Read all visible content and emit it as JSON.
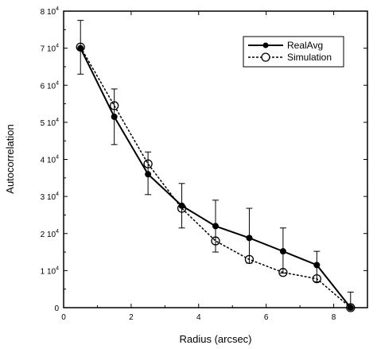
{
  "chart_data": {
    "type": "line",
    "xlabel": "Radius (arcsec)",
    "ylabel": "Autocorrelation",
    "xlim": [
      0,
      9
    ],
    "ylim": [
      0,
      80000
    ],
    "x_ticks": [
      0,
      2,
      4,
      6,
      8
    ],
    "x_tick_labels": [
      "0",
      "2",
      "4",
      "6",
      "8"
    ],
    "y_ticks": [
      0,
      10000,
      20000,
      30000,
      40000,
      50000,
      60000,
      70000,
      80000
    ],
    "y_tick_mantissa": [
      "0",
      "1",
      "2",
      "3",
      "4",
      "5",
      "6",
      "7",
      "8"
    ],
    "y_tick_base": "10",
    "y_tick_exponent": "4",
    "grid": false,
    "legend_position": "top-right",
    "x": [
      0.5,
      1.5,
      2.5,
      3.5,
      4.5,
      5.5,
      6.5,
      7.5,
      8.5
    ],
    "series": [
      {
        "name": "RealAvg",
        "values": [
          70000,
          51500,
          36000,
          27500,
          22000,
          18800,
          15200,
          11500,
          0
        ],
        "error_low": [
          63000,
          44000,
          30500,
          21500,
          15000,
          12000,
          9300,
          7000,
          0
        ],
        "error_high": [
          77500,
          59000,
          42000,
          33500,
          29000,
          26800,
          21500,
          15200,
          4200
        ],
        "marker": "filled-circle",
        "line_style": "solid",
        "color": "#000000"
      },
      {
        "name": "Simulation",
        "values": [
          70300,
          54500,
          38800,
          26800,
          18000,
          13000,
          9500,
          7800,
          0
        ],
        "marker": "open-circle",
        "line_style": "dashed",
        "color": "#000000"
      }
    ]
  }
}
